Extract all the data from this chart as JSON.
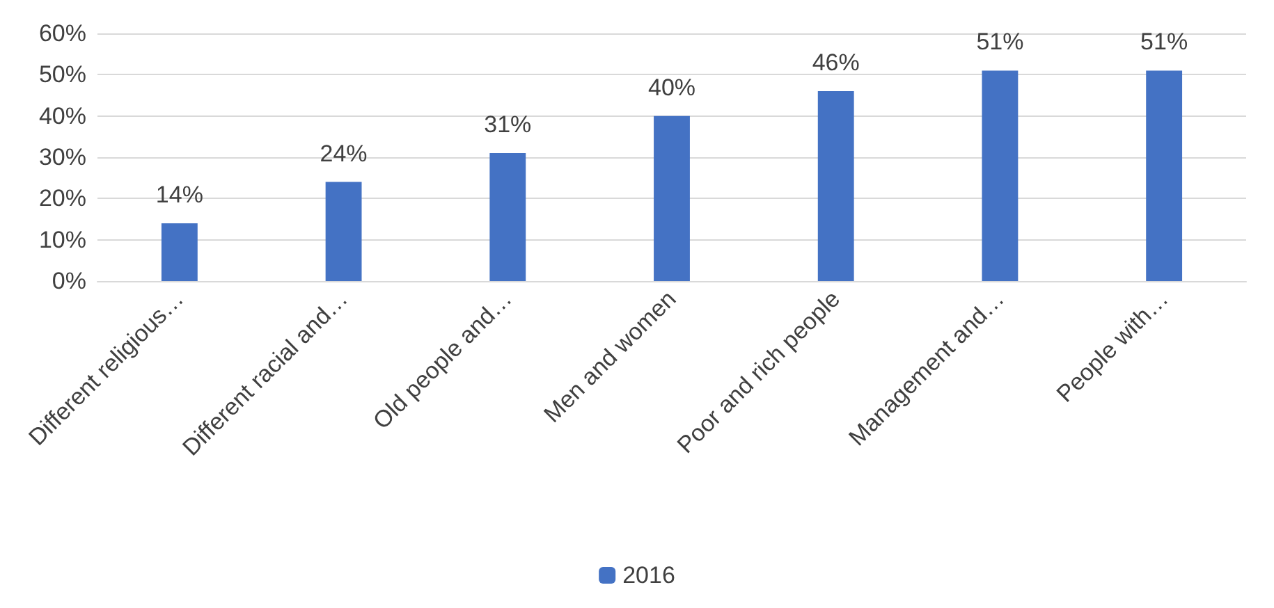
{
  "chart_data": {
    "type": "bar",
    "categories": [
      "Different religious…",
      "Different racial and…",
      "Old people and…",
      "Men and women",
      "Poor and rich people",
      "Management and…",
      "People with…"
    ],
    "series": [
      {
        "name": "2016",
        "color": "#4472c4",
        "values": [
          14,
          24,
          31,
          40,
          46,
          51,
          51
        ],
        "value_labels": [
          "14%",
          "24%",
          "31%",
          "40%",
          "46%",
          "51%",
          "51%"
        ]
      }
    ],
    "ylim": [
      0,
      60
    ],
    "yticks": [
      {
        "value": 0,
        "label": "0%"
      },
      {
        "value": 10,
        "label": "10%"
      },
      {
        "value": 20,
        "label": "20%"
      },
      {
        "value": 30,
        "label": "30%"
      },
      {
        "value": 40,
        "label": "40%"
      },
      {
        "value": 50,
        "label": "50%"
      },
      {
        "value": 60,
        "label": "60%"
      }
    ],
    "grid": "y",
    "legend": "bottom"
  }
}
